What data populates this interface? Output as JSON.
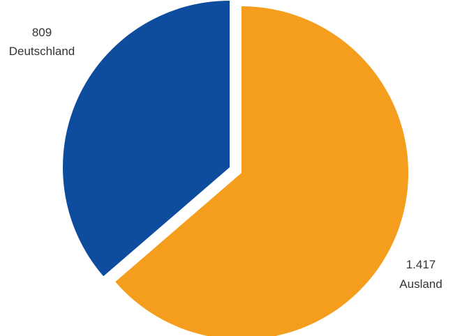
{
  "chart_data": {
    "type": "pie",
    "title": "",
    "slices": [
      {
        "value_label": "1.417",
        "label": "Ausland",
        "value": 1417,
        "color": "#F59E1E"
      },
      {
        "value_label": "809",
        "label": "Deutschland",
        "value": 809,
        "color": "#0E4C9E"
      }
    ],
    "legend": "none"
  }
}
